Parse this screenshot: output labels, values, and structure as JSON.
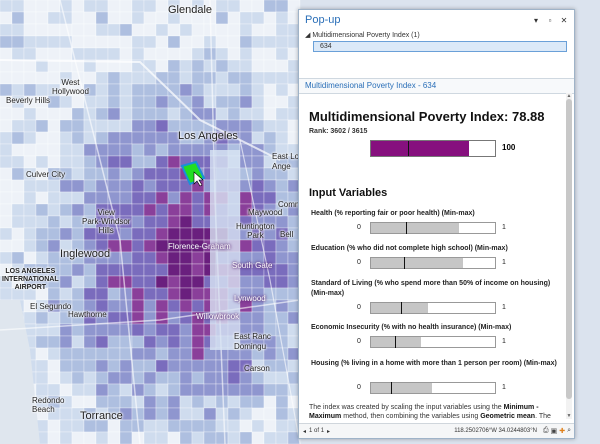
{
  "map": {
    "labels": {
      "glendale": "Glendale",
      "west_hollywood": "West\nHollywood",
      "beverly_hills": "Beverly Hills",
      "los_angeles": "Los Angeles",
      "culver_city": "Culver City",
      "view_park": "View\nPark-Windsor\nHills",
      "florence": "Florence-Graham",
      "inglewood": "Inglewood",
      "huntington_park": "Huntington\nPark",
      "south_gate": "South Gate",
      "lynwood": "Lynwood",
      "willowbrook": "Willowbrook",
      "east_la": "East Lo\nAnge",
      "maywood": "Maywood",
      "bell": "Bell",
      "commerce": "Comme",
      "lax": "LOS ANGELES\nINTERNATIONAL\nAIRPORT",
      "el_segundo": "El Segundo",
      "hawthorne": "Hawthorne",
      "east_rancho": "East Ranc\nDomingu",
      "carson": "Carson",
      "redondo": "Redondo\nBeach",
      "torrance": "Torrance"
    }
  },
  "popup": {
    "title": "Pop-up",
    "window_icons": {
      "menu": "menu-icon",
      "minimize": "minimize-icon",
      "close": "close-icon"
    },
    "layer_name": "Multidimensional Poverty Index (1)",
    "feature_id": "634",
    "feature_header": "Multidimensional Poverty Index - 634",
    "heading": "Multidimensional Poverty Index: 78.88",
    "rank": "Rank: 3602 / 3615",
    "index_min": "0",
    "index_max": "100",
    "index_value": 78.88,
    "index_mean": 30,
    "input_heading": "Input Variables",
    "variables": [
      {
        "label": "Health (% reporting fair or poor health) (Min-max)",
        "min": "0",
        "max": "1",
        "value": 0.71,
        "mean": 0.28
      },
      {
        "label": "Education (% who did not complete high school) (Min-max)",
        "min": "0",
        "max": "1",
        "value": 0.74,
        "mean": 0.27
      },
      {
        "label": "Standard of Living (% who spend more than 50% of income on housing) (Min-max)",
        "min": "0",
        "max": "1",
        "value": 0.46,
        "mean": 0.24
      },
      {
        "label": "Economic Insecurity (% with no health insurance) (Min-max)",
        "min": "0",
        "max": "1",
        "value": 0.4,
        "mean": 0.19
      },
      {
        "label": "Housing (% living in a home with more than 1 person per room) (Min-max)",
        "min": "0",
        "max": "1",
        "value": 0.49,
        "mean": 0.16
      }
    ],
    "note_parts": [
      "The index was created by scaling the input variables using the ",
      "Minimum - Maximum",
      " method, then combining the variables using ",
      "Geometric mean",
      ". The black line in each bar indicates the mean."
    ],
    "status": {
      "pager": "1 of 1",
      "coordinates": "118.2502706°W 34.0244803°N"
    },
    "colors": {
      "accent": "#2a6fb8",
      "index_fill": "#86107e",
      "var_fill": "#c6c6c6"
    }
  }
}
